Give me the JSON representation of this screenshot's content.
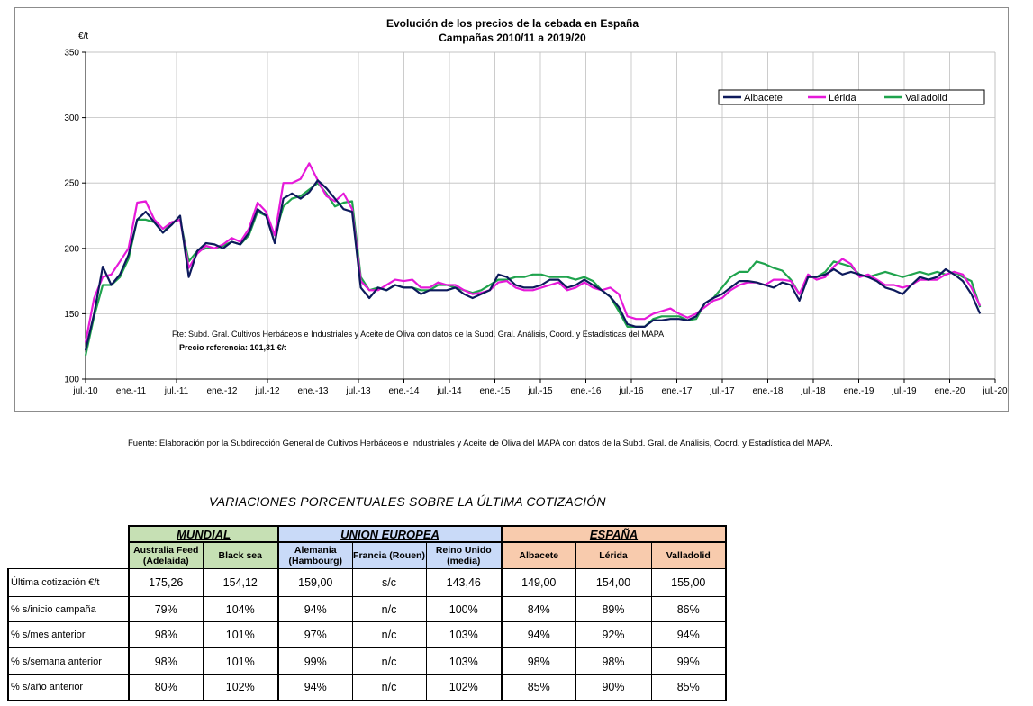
{
  "chart_data": {
    "type": "line",
    "title": "Evolución de los precios de la cebada en España",
    "subtitle": "Campañas 2010/11 a 2019/20",
    "ylabel": "€/t",
    "ylim": [
      100,
      350
    ],
    "y_ticks": [
      "100",
      "150",
      "200",
      "250",
      "300",
      "350"
    ],
    "x_ticks": [
      "jul.-10",
      "ene.-11",
      "jul.-11",
      "ene.-12",
      "jul.-12",
      "ene.-13",
      "jul.-13",
      "ene.-14",
      "jul.-14",
      "ene.-15",
      "jul.-15",
      "ene.-16",
      "jul.-16",
      "ene.-17",
      "jul.-17",
      "ene.-18",
      "jul.-18",
      "ene.-19",
      "jul.-19",
      "ene.-20",
      "jul.-20"
    ],
    "x_start": "2010-07",
    "x_step": "1 month",
    "grid": true,
    "legend_position": "top-right",
    "annotation_source": "Fte: Subd. Gral. Cultivos Herbáceos e Industriales y Aceite de Oliva con datos de la Subd. Gral. Análisis, Coord. y Estadísticas del MAPA",
    "annotation_ref": "Precio referencia: 101,31 €/t",
    "series": [
      {
        "name": "Albacete",
        "color": "#0d1a5c",
        "values": [
          122,
          150,
          186,
          172,
          180,
          195,
          222,
          228,
          220,
          212,
          218,
          225,
          178,
          198,
          204,
          203,
          200,
          205,
          203,
          212,
          230,
          225,
          204,
          238,
          242,
          238,
          243,
          252,
          246,
          238,
          230,
          228,
          170,
          162,
          170,
          168,
          172,
          170,
          170,
          165,
          168,
          168,
          168,
          170,
          165,
          162,
          165,
          168,
          180,
          178,
          172,
          170,
          170,
          172,
          176,
          176,
          170,
          172,
          176,
          172,
          168,
          163,
          155,
          142,
          140,
          140,
          145,
          145,
          146,
          146,
          145,
          148,
          158,
          162,
          165,
          170,
          175,
          175,
          174,
          172,
          170,
          174,
          172,
          160,
          178,
          178,
          180,
          184,
          180,
          182,
          180,
          178,
          175,
          170,
          168,
          165,
          172,
          178,
          176,
          178,
          184,
          180,
          175,
          165,
          150
        ]
      },
      {
        "name": "Lérida",
        "color": "#e619d9",
        "values": [
          128,
          162,
          178,
          180,
          190,
          200,
          235,
          236,
          222,
          215,
          220,
          222,
          185,
          196,
          202,
          200,
          203,
          208,
          205,
          215,
          235,
          228,
          210,
          250,
          250,
          253,
          265,
          252,
          240,
          236,
          242,
          230,
          175,
          168,
          168,
          172,
          176,
          175,
          176,
          170,
          170,
          174,
          172,
          172,
          168,
          165,
          166,
          168,
          174,
          175,
          170,
          168,
          168,
          170,
          172,
          174,
          168,
          170,
          174,
          170,
          168,
          170,
          165,
          148,
          146,
          146,
          150,
          152,
          154,
          150,
          147,
          150,
          155,
          160,
          162,
          168,
          172,
          174,
          174,
          172,
          176,
          176,
          175,
          165,
          180,
          176,
          178,
          186,
          192,
          188,
          178,
          180,
          176,
          172,
          172,
          170,
          172,
          176,
          176,
          176,
          180,
          182,
          180,
          170,
          156
        ]
      },
      {
        "name": "Valladolid",
        "color": "#1fa34d",
        "values": [
          118,
          148,
          172,
          172,
          178,
          192,
          222,
          222,
          220,
          212,
          220,
          222,
          190,
          198,
          200,
          200,
          202,
          205,
          203,
          210,
          228,
          225,
          210,
          232,
          238,
          240,
          245,
          250,
          242,
          232,
          235,
          236,
          178,
          168,
          170,
          168,
          172,
          170,
          170,
          168,
          168,
          172,
          172,
          170,
          168,
          166,
          168,
          172,
          176,
          176,
          178,
          178,
          180,
          180,
          178,
          178,
          178,
          176,
          178,
          175,
          168,
          163,
          152,
          140,
          140,
          140,
          146,
          148,
          148,
          148,
          145,
          146,
          158,
          162,
          170,
          178,
          182,
          182,
          190,
          188,
          185,
          183,
          176,
          165,
          178,
          178,
          182,
          190,
          188,
          186,
          180,
          178,
          180,
          182,
          180,
          178,
          180,
          182,
          180,
          182,
          180,
          182,
          178,
          175,
          155
        ]
      }
    ]
  },
  "source_note": "Fuente: Elaboración por la Subdirección General de Cultivos Herbáceos e Industriales y Aceite de Oliva del MAPA con datos de la Subd. Gral. de Análisis, Coord. y Estadística del MAPA.",
  "table": {
    "title": "VARIACIONES PORCENTUALES SOBRE LA ÚLTIMA COTIZACIÓN",
    "groups": [
      "MUNDIAL",
      "UNION EUROPEA",
      "ESPAÑA"
    ],
    "columns": [
      "Australia Feed (Adelaida)",
      "Black sea",
      "Alemania (Hambourg)",
      "Francia (Rouen)",
      "Reino Unido (media)",
      "Albacete",
      "Lérida",
      "Valladolid"
    ],
    "rows": [
      {
        "label": "Última cotización €/t",
        "values": [
          "175,26",
          "154,12",
          "159,00",
          "s/c",
          "143,46",
          "149,00",
          "154,00",
          "155,00"
        ]
      },
      {
        "label": "% s/inicio campaña",
        "values": [
          "79%",
          "104%",
          "94%",
          "n/c",
          "100%",
          "84%",
          "89%",
          "86%"
        ]
      },
      {
        "label": "% s/mes anterior",
        "values": [
          "98%",
          "101%",
          "97%",
          "n/c",
          "103%",
          "94%",
          "92%",
          "94%"
        ]
      },
      {
        "label": "% s/semana anterior",
        "values": [
          "98%",
          "101%",
          "99%",
          "n/c",
          "103%",
          "98%",
          "98%",
          "99%"
        ]
      },
      {
        "label": "% s/año anterior",
        "values": [
          "80%",
          "102%",
          "94%",
          "n/c",
          "102%",
          "85%",
          "90%",
          "85%"
        ]
      }
    ]
  }
}
